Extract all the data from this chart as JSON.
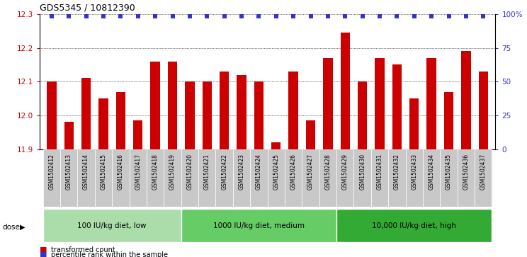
{
  "title": "GDS5345 / 10812390",
  "samples": [
    "GSM1502412",
    "GSM1502413",
    "GSM1502414",
    "GSM1502415",
    "GSM1502416",
    "GSM1502417",
    "GSM1502418",
    "GSM1502419",
    "GSM1502420",
    "GSM1502421",
    "GSM1502422",
    "GSM1502423",
    "GSM1502424",
    "GSM1502425",
    "GSM1502426",
    "GSM1502427",
    "GSM1502428",
    "GSM1502429",
    "GSM1502430",
    "GSM1502431",
    "GSM1502432",
    "GSM1502433",
    "GSM1502434",
    "GSM1502435",
    "GSM1502436",
    "GSM1502437"
  ],
  "values": [
    12.1,
    11.98,
    12.11,
    12.05,
    12.07,
    11.985,
    12.16,
    12.16,
    12.1,
    12.1,
    12.13,
    12.12,
    12.1,
    11.92,
    12.13,
    11.985,
    12.17,
    12.245,
    12.1,
    12.17,
    12.15,
    12.05,
    12.17,
    12.07,
    12.19,
    12.13
  ],
  "ylim": [
    11.9,
    12.3
  ],
  "yticks": [
    11.9,
    12.0,
    12.1,
    12.2,
    12.3
  ],
  "bar_color": "#CC0000",
  "dot_color": "#3333CC",
  "grid_color": "#000000",
  "groups": [
    {
      "label": "100 IU/kg diet, low",
      "start": 0,
      "end": 8,
      "color": "#AADDAA"
    },
    {
      "label": "1000 IU/kg diet, medium",
      "start": 8,
      "end": 17,
      "color": "#66CC66"
    },
    {
      "label": "10,000 IU/kg diet, high",
      "start": 17,
      "end": 26,
      "color": "#33AA33"
    }
  ],
  "dose_label": "dose",
  "legend_red": "transformed count",
  "legend_blue": "percentile rank within the sample",
  "right_yticks": [
    0,
    25,
    50,
    75,
    100
  ],
  "right_ylabels": [
    "0",
    "25",
    "50",
    "75",
    "100%"
  ]
}
